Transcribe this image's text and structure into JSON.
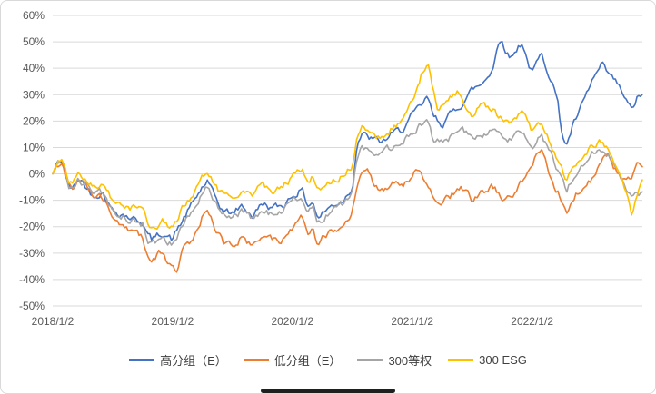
{
  "chart": {
    "background": "#FFFFFF",
    "grid_color": "#D9D9D9",
    "axis_text_color": "#595959"
  },
  "chart_data": {
    "type": "line",
    "title": "",
    "xlabel": "",
    "ylabel": "",
    "ylim": [
      -50,
      60
    ],
    "xlim": [
      0,
      4.92
    ],
    "grid": "horizontal",
    "legend_position": "bottom",
    "y_ticks": [
      "60%",
      "50%",
      "40%",
      "30%",
      "20%",
      "10%",
      "0%",
      "-10%",
      "-20%",
      "-30%",
      "-40%",
      "-50%"
    ],
    "x_ticks": [
      "2018/1/2",
      "2019/1/2",
      "2020/1/2",
      "2021/1/2",
      "2022/1/2"
    ],
    "x_tick_positions": [
      0,
      1,
      2,
      3,
      4
    ],
    "series": [
      {
        "name": "高分组（E）",
        "color": "#4472C4",
        "points": [
          [
            0,
            0
          ],
          [
            0.04,
            4
          ],
          [
            0.08,
            5
          ],
          [
            0.13,
            -4
          ],
          [
            0.17,
            -6
          ],
          [
            0.21,
            -2
          ],
          [
            0.25,
            -3
          ],
          [
            0.33,
            -8
          ],
          [
            0.42,
            -7
          ],
          [
            0.5,
            -14
          ],
          [
            0.58,
            -15
          ],
          [
            0.67,
            -17
          ],
          [
            0.75,
            -18
          ],
          [
            0.79,
            -23
          ],
          [
            0.83,
            -25
          ],
          [
            0.92,
            -22
          ],
          [
            1,
            -25
          ],
          [
            1.04,
            -21
          ],
          [
            1.08,
            -18
          ],
          [
            1.17,
            -11
          ],
          [
            1.25,
            -5
          ],
          [
            1.29,
            -3
          ],
          [
            1.33,
            -7
          ],
          [
            1.42,
            -14
          ],
          [
            1.5,
            -15
          ],
          [
            1.58,
            -12
          ],
          [
            1.67,
            -16
          ],
          [
            1.75,
            -11
          ],
          [
            1.83,
            -13
          ],
          [
            1.92,
            -12
          ],
          [
            2,
            -8
          ],
          [
            2.08,
            -6
          ],
          [
            2.13,
            -12
          ],
          [
            2.17,
            -10
          ],
          [
            2.21,
            -17
          ],
          [
            2.25,
            -15
          ],
          [
            2.33,
            -12
          ],
          [
            2.42,
            -10
          ],
          [
            2.5,
            -5
          ],
          [
            2.54,
            12
          ],
          [
            2.58,
            15
          ],
          [
            2.67,
            13
          ],
          [
            2.75,
            12
          ],
          [
            2.83,
            15
          ],
          [
            2.92,
            17
          ],
          [
            3,
            22
          ],
          [
            3.08,
            26
          ],
          [
            3.13,
            29
          ],
          [
            3.17,
            22
          ],
          [
            3.25,
            19
          ],
          [
            3.33,
            23
          ],
          [
            3.42,
            27
          ],
          [
            3.5,
            32
          ],
          [
            3.58,
            34
          ],
          [
            3.67,
            40
          ],
          [
            3.71,
            48
          ],
          [
            3.75,
            51
          ],
          [
            3.79,
            46
          ],
          [
            3.83,
            44
          ],
          [
            3.88,
            48
          ],
          [
            3.92,
            50
          ],
          [
            3.96,
            43
          ],
          [
            4,
            38
          ],
          [
            4.04,
            42
          ],
          [
            4.08,
            45
          ],
          [
            4.17,
            35
          ],
          [
            4.21,
            28
          ],
          [
            4.25,
            15
          ],
          [
            4.29,
            11
          ],
          [
            4.33,
            17
          ],
          [
            4.42,
            26
          ],
          [
            4.5,
            35
          ],
          [
            4.58,
            41
          ],
          [
            4.63,
            38
          ],
          [
            4.67,
            36
          ],
          [
            4.71,
            34
          ],
          [
            4.75,
            31
          ],
          [
            4.79,
            27
          ],
          [
            4.83,
            24
          ],
          [
            4.88,
            29
          ],
          [
            4.92,
            30
          ]
        ]
      },
      {
        "name": "低分组（E）",
        "color": "#ED7D31",
        "points": [
          [
            0,
            0
          ],
          [
            0.04,
            3
          ],
          [
            0.08,
            3
          ],
          [
            0.13,
            -4
          ],
          [
            0.17,
            -5
          ],
          [
            0.21,
            -2
          ],
          [
            0.25,
            -3
          ],
          [
            0.33,
            -8
          ],
          [
            0.42,
            -9
          ],
          [
            0.5,
            -16
          ],
          [
            0.58,
            -20
          ],
          [
            0.67,
            -22
          ],
          [
            0.75,
            -24
          ],
          [
            0.79,
            -30
          ],
          [
            0.83,
            -32
          ],
          [
            0.92,
            -29
          ],
          [
            0.96,
            -33
          ],
          [
            1,
            -34
          ],
          [
            1.04,
            -37
          ],
          [
            1.08,
            -30
          ],
          [
            1.17,
            -24
          ],
          [
            1.25,
            -16
          ],
          [
            1.29,
            -13
          ],
          [
            1.33,
            -18
          ],
          [
            1.42,
            -26
          ],
          [
            1.5,
            -27
          ],
          [
            1.58,
            -24
          ],
          [
            1.67,
            -28
          ],
          [
            1.75,
            -23
          ],
          [
            1.83,
            -25
          ],
          [
            1.92,
            -25
          ],
          [
            2,
            -20
          ],
          [
            2.08,
            -17
          ],
          [
            2.13,
            -22
          ],
          [
            2.17,
            -20
          ],
          [
            2.21,
            -26
          ],
          [
            2.25,
            -24
          ],
          [
            2.33,
            -22
          ],
          [
            2.42,
            -20
          ],
          [
            2.5,
            -15
          ],
          [
            2.54,
            -4
          ],
          [
            2.58,
            0
          ],
          [
            2.63,
            3
          ],
          [
            2.67,
            -3
          ],
          [
            2.75,
            -6
          ],
          [
            2.83,
            -4
          ],
          [
            2.92,
            -4
          ],
          [
            3,
            -1
          ],
          [
            3.04,
            1
          ],
          [
            3.08,
            -1
          ],
          [
            3.13,
            -3
          ],
          [
            3.17,
            -8
          ],
          [
            3.25,
            -11
          ],
          [
            3.33,
            -8
          ],
          [
            3.42,
            -6
          ],
          [
            3.5,
            -10
          ],
          [
            3.58,
            -7
          ],
          [
            3.67,
            -5
          ],
          [
            3.75,
            -9
          ],
          [
            3.83,
            -8
          ],
          [
            3.92,
            -2
          ],
          [
            3.96,
            2
          ],
          [
            4,
            4
          ],
          [
            4.04,
            8
          ],
          [
            4.08,
            9
          ],
          [
            4.13,
            2
          ],
          [
            4.17,
            -3
          ],
          [
            4.25,
            -10
          ],
          [
            4.29,
            -14
          ],
          [
            4.33,
            -9
          ],
          [
            4.42,
            -5
          ],
          [
            4.5,
            -2
          ],
          [
            4.54,
            2
          ],
          [
            4.58,
            6
          ],
          [
            4.63,
            8
          ],
          [
            4.67,
            4
          ],
          [
            4.71,
            1
          ],
          [
            4.75,
            -2
          ],
          [
            4.79,
            -4
          ],
          [
            4.83,
            -1
          ],
          [
            4.88,
            4
          ],
          [
            4.92,
            2
          ]
        ]
      },
      {
        "name": "300等权",
        "color": "#A5A5A5",
        "points": [
          [
            0,
            0
          ],
          [
            0.04,
            4
          ],
          [
            0.08,
            5
          ],
          [
            0.13,
            -4
          ],
          [
            0.17,
            -5
          ],
          [
            0.21,
            -2
          ],
          [
            0.25,
            -3
          ],
          [
            0.33,
            -7
          ],
          [
            0.42,
            -7
          ],
          [
            0.5,
            -14
          ],
          [
            0.58,
            -16
          ],
          [
            0.67,
            -18
          ],
          [
            0.75,
            -19
          ],
          [
            0.79,
            -25
          ],
          [
            0.83,
            -27
          ],
          [
            0.92,
            -24
          ],
          [
            1,
            -27
          ],
          [
            1.04,
            -23
          ],
          [
            1.08,
            -19
          ],
          [
            1.17,
            -13
          ],
          [
            1.25,
            -7
          ],
          [
            1.29,
            -5
          ],
          [
            1.33,
            -9
          ],
          [
            1.42,
            -16
          ],
          [
            1.5,
            -17
          ],
          [
            1.58,
            -14
          ],
          [
            1.67,
            -18
          ],
          [
            1.75,
            -13
          ],
          [
            1.83,
            -15
          ],
          [
            1.92,
            -14
          ],
          [
            2,
            -10
          ],
          [
            2.08,
            -8
          ],
          [
            2.13,
            -14
          ],
          [
            2.17,
            -12
          ],
          [
            2.21,
            -19
          ],
          [
            2.25,
            -17
          ],
          [
            2.33,
            -14
          ],
          [
            2.42,
            -12
          ],
          [
            2.5,
            -7
          ],
          [
            2.54,
            7
          ],
          [
            2.58,
            10
          ],
          [
            2.67,
            8
          ],
          [
            2.75,
            8
          ],
          [
            2.83,
            10
          ],
          [
            2.92,
            12
          ],
          [
            3,
            16
          ],
          [
            3.08,
            19
          ],
          [
            3.13,
            21
          ],
          [
            3.17,
            14
          ],
          [
            3.25,
            12
          ],
          [
            3.33,
            14
          ],
          [
            3.42,
            16
          ],
          [
            3.5,
            14
          ],
          [
            3.58,
            15
          ],
          [
            3.67,
            17
          ],
          [
            3.75,
            14
          ],
          [
            3.83,
            13
          ],
          [
            3.92,
            16
          ],
          [
            4,
            11
          ],
          [
            4.04,
            13
          ],
          [
            4.08,
            14
          ],
          [
            4.17,
            6
          ],
          [
            4.25,
            -2
          ],
          [
            4.29,
            -6
          ],
          [
            4.33,
            -2
          ],
          [
            4.42,
            3
          ],
          [
            4.5,
            7
          ],
          [
            4.58,
            9
          ],
          [
            4.63,
            7
          ],
          [
            4.67,
            4
          ],
          [
            4.71,
            1
          ],
          [
            4.75,
            -2
          ],
          [
            4.79,
            -6
          ],
          [
            4.83,
            -10
          ],
          [
            4.88,
            -7
          ],
          [
            4.92,
            -8
          ]
        ]
      },
      {
        "name": "300 ESG",
        "color": "#FFC000",
        "points": [
          [
            0,
            0
          ],
          [
            0.04,
            5
          ],
          [
            0.08,
            6
          ],
          [
            0.13,
            -2
          ],
          [
            0.17,
            -3
          ],
          [
            0.21,
            0
          ],
          [
            0.25,
            -1
          ],
          [
            0.33,
            -5
          ],
          [
            0.42,
            -4
          ],
          [
            0.5,
            -10
          ],
          [
            0.58,
            -12
          ],
          [
            0.67,
            -13
          ],
          [
            0.75,
            -13
          ],
          [
            0.79,
            -18
          ],
          [
            0.83,
            -20
          ],
          [
            0.92,
            -18
          ],
          [
            1,
            -21
          ],
          [
            1.04,
            -17
          ],
          [
            1.08,
            -13
          ],
          [
            1.17,
            -8
          ],
          [
            1.25,
            -1
          ],
          [
            1.29,
            1
          ],
          [
            1.33,
            -3
          ],
          [
            1.42,
            -8
          ],
          [
            1.5,
            -9
          ],
          [
            1.58,
            -6
          ],
          [
            1.67,
            -9
          ],
          [
            1.75,
            -4
          ],
          [
            1.83,
            -6
          ],
          [
            1.92,
            -5
          ],
          [
            2,
            -1
          ],
          [
            2.08,
            2
          ],
          [
            2.13,
            -3
          ],
          [
            2.17,
            -1
          ],
          [
            2.21,
            -7
          ],
          [
            2.25,
            -5
          ],
          [
            2.33,
            -3
          ],
          [
            2.42,
            -1
          ],
          [
            2.5,
            3
          ],
          [
            2.54,
            14
          ],
          [
            2.58,
            17
          ],
          [
            2.67,
            14
          ],
          [
            2.75,
            14
          ],
          [
            2.83,
            17
          ],
          [
            2.92,
            20
          ],
          [
            2.96,
            24
          ],
          [
            3,
            28
          ],
          [
            3.04,
            33
          ],
          [
            3.08,
            38
          ],
          [
            3.13,
            43
          ],
          [
            3.17,
            32
          ],
          [
            3.21,
            24
          ],
          [
            3.25,
            26
          ],
          [
            3.33,
            29
          ],
          [
            3.38,
            31
          ],
          [
            3.42,
            27
          ],
          [
            3.5,
            23
          ],
          [
            3.58,
            26
          ],
          [
            3.67,
            24
          ],
          [
            3.75,
            21
          ],
          [
            3.83,
            20
          ],
          [
            3.92,
            23
          ],
          [
            4,
            16
          ],
          [
            4.04,
            18
          ],
          [
            4.08,
            19
          ],
          [
            4.17,
            10
          ],
          [
            4.25,
            2
          ],
          [
            4.29,
            -2
          ],
          [
            4.33,
            2
          ],
          [
            4.42,
            7
          ],
          [
            4.5,
            11
          ],
          [
            4.58,
            13
          ],
          [
            4.63,
            10
          ],
          [
            4.67,
            7
          ],
          [
            4.71,
            3
          ],
          [
            4.75,
            0
          ],
          [
            4.79,
            -8
          ],
          [
            4.83,
            -16
          ],
          [
            4.88,
            -8
          ],
          [
            4.92,
            -4
          ]
        ]
      }
    ]
  }
}
